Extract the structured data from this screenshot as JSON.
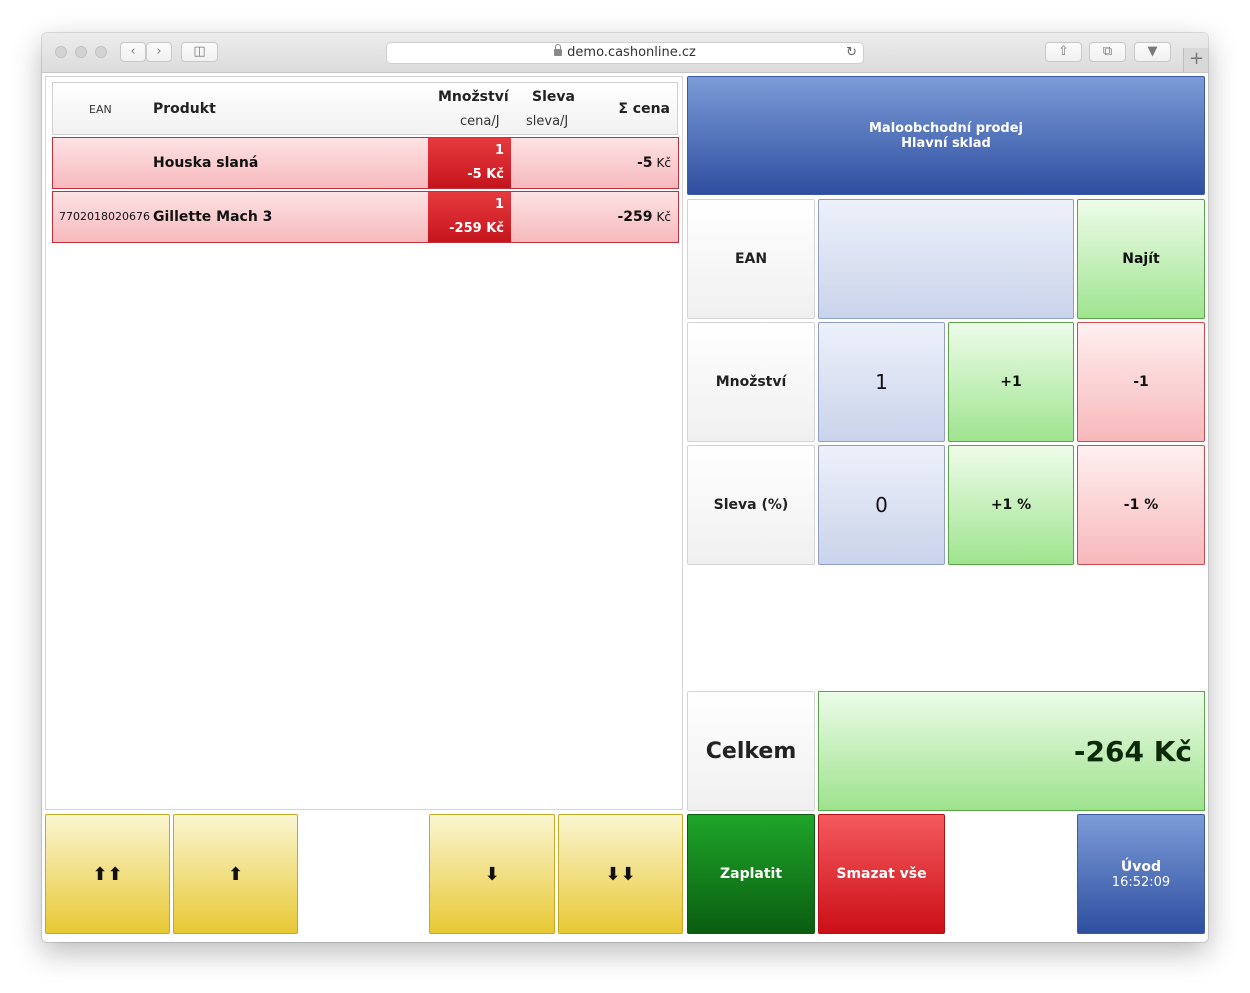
{
  "browser": {
    "url": "demo.cashonline.cz"
  },
  "table": {
    "headers": {
      "ean": "EAN",
      "product": "Produkt",
      "quantity": "Množství",
      "quantity_sub": "cena/J",
      "discount": "Sleva",
      "discount_sub": "sleva/J",
      "total": "Σ cena"
    },
    "rows": [
      {
        "ean": "",
        "product": "Houska slaná",
        "qty": "1",
        "unit_price": "-5 Kč",
        "total": "-5",
        "currency": "Kč"
      },
      {
        "ean": "7702018020676",
        "product": "Gillette Mach 3",
        "qty": "1",
        "unit_price": "-259 Kč",
        "total": "-259",
        "currency": "Kč"
      }
    ]
  },
  "header_panel": {
    "line1": "Maloobchodní prodej",
    "line2": "Hlavní sklad"
  },
  "form": {
    "ean_label": "EAN",
    "ean_value": "",
    "find_label": "Najít",
    "qty_label": "Množství",
    "qty_value": "1",
    "qty_plus": "+1",
    "qty_minus": "-1",
    "discount_label": "Sleva (%)",
    "discount_value": "0",
    "discount_plus": "+1 %",
    "discount_minus": "-1 %"
  },
  "summary": {
    "label": "Celkem",
    "value": "-264 Kč"
  },
  "nav": {
    "top": "⬆⬆",
    "up": "⬆",
    "down": "⬇",
    "bottom": "⬇⬇"
  },
  "actions": {
    "pay": "Zaplatit",
    "clear": "Smazat vše",
    "home": "Úvod",
    "time": "16:52:09"
  },
  "colors": {
    "blue_panel": "#3c5aa8",
    "row_red": "#f7b9bd",
    "qty_red": "#c5151c",
    "green": "#9fe48f",
    "yellow": "#e8c834"
  }
}
